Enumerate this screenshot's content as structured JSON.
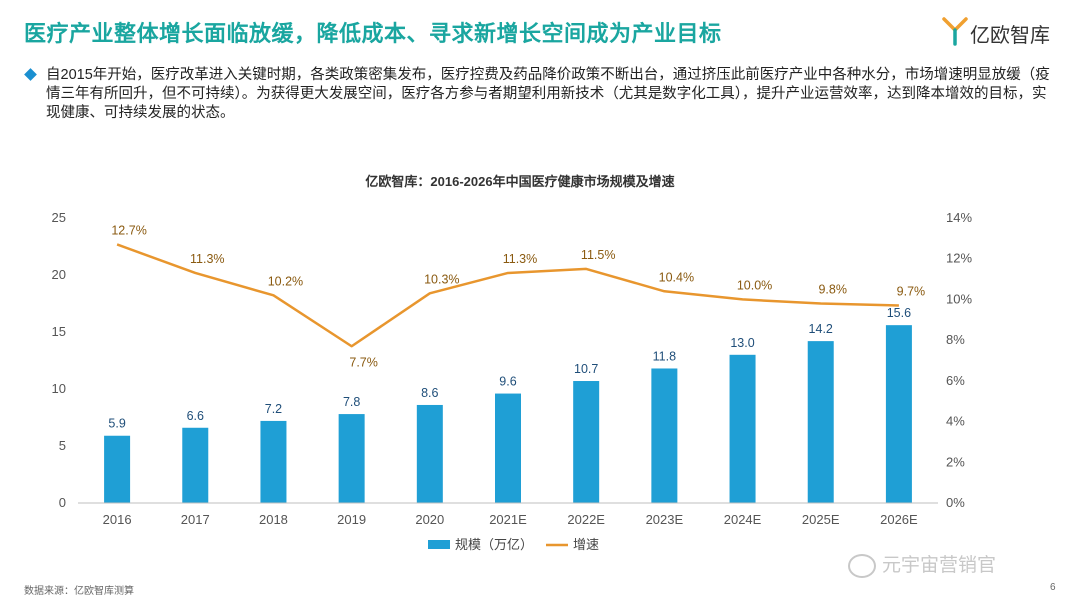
{
  "page": {
    "title": "医疗产业整体增长面临放缓，降低成本、寻求新增长空间成为产业目标",
    "logo_text": "亿欧智库",
    "bullet": "自2015年开始，医疗改革进入关键时期，各类政策密集发布，医疗控费及药品降价政策不断出台，通过挤压此前医疗产业中各种水分，市场增速明显放缓（疫情三年有所回升，但不可持续）。为获得更大发展空间，医疗各方参与者期望利用新技术（尤其是数字化工具），提升产业运营效率，达到降本增效的目标，实现健康、可持续发展的状态。",
    "source": "数据来源：亿欧智库测算",
    "page_number": "6",
    "watermark": "元宇宙营销官",
    "colors": {
      "title": "#1aa6a0",
      "bar": "#1f9fd5",
      "line": "#e8962e",
      "bullet": "#1a8fd0"
    }
  },
  "chart_data": {
    "type": "bar",
    "title": "亿欧智库：2016-2026年中国医疗健康市场规模及增速",
    "categories": [
      "2016",
      "2017",
      "2018",
      "2019",
      "2020",
      "2021E",
      "2022E",
      "2023E",
      "2024E",
      "2025E",
      "2026E"
    ],
    "series": [
      {
        "name": "规模（万亿）",
        "type": "bar",
        "axis": "left",
        "values": [
          5.9,
          6.6,
          7.2,
          7.8,
          8.6,
          9.6,
          10.7,
          11.8,
          13.0,
          14.2,
          15.6
        ],
        "labels": [
          "5.9",
          "6.6",
          "7.2",
          "7.8",
          "8.6",
          "9.6",
          "10.7",
          "11.8",
          "13.0",
          "14.2",
          "15.6"
        ]
      },
      {
        "name": "增速",
        "type": "line",
        "axis": "right",
        "values": [
          12.7,
          11.3,
          10.2,
          7.7,
          10.3,
          11.3,
          11.5,
          10.4,
          10.0,
          9.8,
          9.7
        ],
        "labels": [
          "12.7%",
          "11.3%",
          "10.2%",
          "7.7%",
          "10.3%",
          "11.3%",
          "11.5%",
          "10.4%",
          "10.0%",
          "9.8%",
          "9.7%"
        ]
      }
    ],
    "ylim_left": [
      0,
      25
    ],
    "yticks_left": [
      "0",
      "5",
      "10",
      "15",
      "20",
      "25"
    ],
    "ylim_right": [
      0,
      14
    ],
    "yticks_right": [
      "0%",
      "2%",
      "4%",
      "6%",
      "8%",
      "10%",
      "12%",
      "14%"
    ],
    "grid": false,
    "legend_position": "bottom"
  }
}
